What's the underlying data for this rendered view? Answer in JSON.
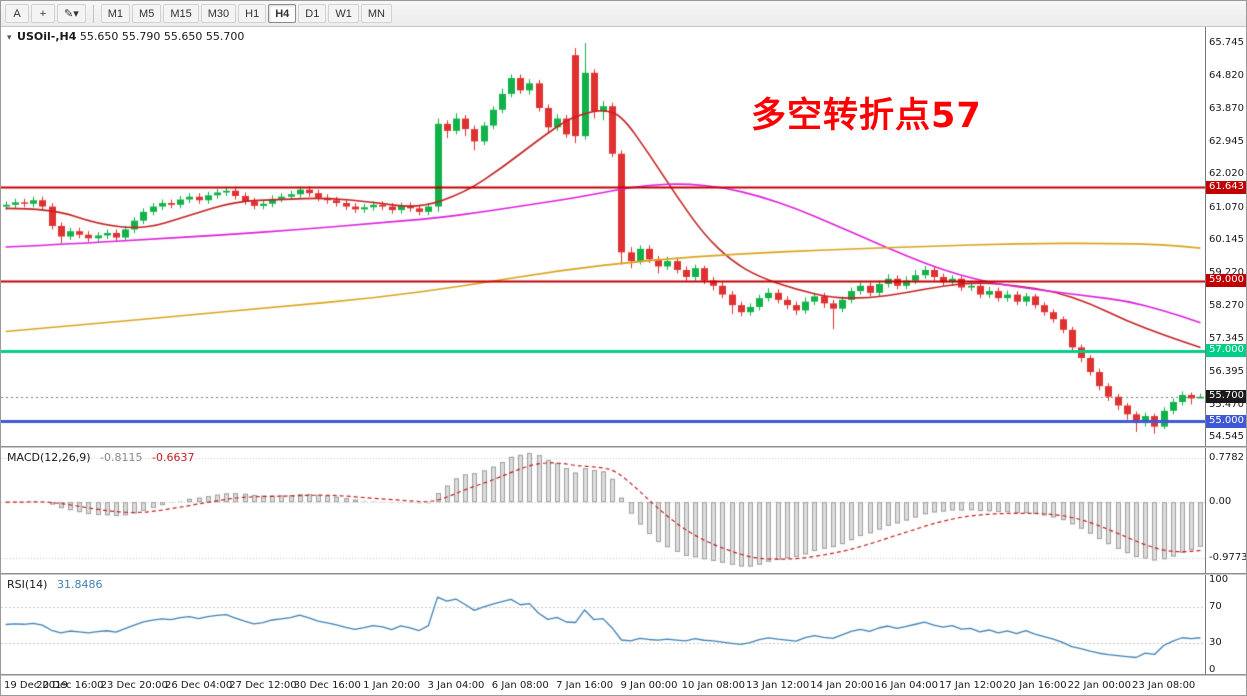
{
  "toolbar": {
    "tools": [
      {
        "name": "text-tool-button",
        "glyph": "A"
      },
      {
        "name": "crosshair-tool-button",
        "glyph": "+"
      },
      {
        "name": "objects-dropdown-button",
        "glyph": "✎▾"
      }
    ],
    "timeframes": [
      {
        "label": "M1",
        "active": false
      },
      {
        "label": "M5",
        "active": false
      },
      {
        "label": "M15",
        "active": false
      },
      {
        "label": "M30",
        "active": false
      },
      {
        "label": "H1",
        "active": false
      },
      {
        "label": "H4",
        "active": true
      },
      {
        "label": "D1",
        "active": false
      },
      {
        "label": "W1",
        "active": false
      },
      {
        "label": "MN",
        "active": false
      }
    ]
  },
  "main_chart": {
    "title_symbol": "USOil-,H4",
    "title_ohlc": "55.650 55.790 55.650 55.700",
    "annotation": {
      "text": "多空转折点57",
      "color": "#ff0000"
    }
  },
  "macd_panel": {
    "label": "MACD(12,26,9)",
    "main_value": "-0.8115",
    "signal_value": "-0.6637"
  },
  "rsi_panel": {
    "label": "RSI(14)",
    "value": "31.8486"
  },
  "chart_data": {
    "type": "candlestick",
    "symbol": "USOil-",
    "timeframe": "H4",
    "ohlc_display": {
      "open": "55.650",
      "high": "55.790",
      "low": "55.650",
      "close": "55.700"
    },
    "price_axis": {
      "min": 54.3,
      "max": 66.2,
      "ticks": [
        "65.745",
        "64.820",
        "63.870",
        "62.945",
        "62.020",
        "61.070",
        "60.145",
        "59.220",
        "58.270",
        "57.345",
        "56.395",
        "55.470",
        "54.545"
      ]
    },
    "hlines": [
      {
        "value": 61.643,
        "label": "61.643",
        "color": "#c00000",
        "width": 2
      },
      {
        "value": 59.0,
        "label": "59.000",
        "color": "#c00000",
        "width": 2
      },
      {
        "value": 57.0,
        "label": "57.000",
        "color": "#00cf87",
        "width": 3
      },
      {
        "value": 55.0,
        "label": "55.000",
        "color": "#3f58d6",
        "width": 3
      }
    ],
    "current_price": {
      "value": 55.7,
      "label": "55.700",
      "bg": "#1a1a1a"
    },
    "colors": {
      "up": "#12b24a",
      "down": "#e03131",
      "ma_fast": "#c32222",
      "ma_mid": "#dd22dd",
      "ma_slow": "#d9a41e",
      "macd_hist_fill": "#dcdcdc",
      "macd_hist_stroke": "#a0a0a0",
      "macd_signal": "#c32222",
      "rsi": "#3f81b5"
    },
    "candles": [
      [
        61.1,
        61.25,
        61.0,
        61.15
      ],
      [
        61.15,
        61.32,
        61.05,
        61.22
      ],
      [
        61.22,
        61.32,
        61.08,
        61.18
      ],
      [
        61.18,
        61.38,
        61.08,
        61.28
      ],
      [
        61.28,
        61.38,
        61.0,
        61.1
      ],
      [
        61.1,
        61.2,
        60.45,
        60.55
      ],
      [
        60.55,
        60.65,
        60.05,
        60.25
      ],
      [
        60.25,
        60.5,
        60.15,
        60.4
      ],
      [
        60.4,
        60.5,
        60.2,
        60.3
      ],
      [
        60.3,
        60.4,
        60.1,
        60.2
      ],
      [
        60.2,
        60.38,
        60.1,
        60.28
      ],
      [
        60.28,
        60.45,
        60.18,
        60.35
      ],
      [
        60.35,
        60.45,
        60.12,
        60.22
      ],
      [
        60.22,
        60.55,
        60.12,
        60.45
      ],
      [
        60.45,
        60.8,
        60.35,
        60.7
      ],
      [
        60.7,
        61.05,
        60.6,
        60.95
      ],
      [
        60.95,
        61.2,
        60.85,
        61.1
      ],
      [
        61.1,
        61.3,
        61.0,
        61.2
      ],
      [
        61.2,
        61.3,
        61.05,
        61.15
      ],
      [
        61.15,
        61.4,
        61.05,
        61.3
      ],
      [
        61.3,
        61.48,
        61.2,
        61.38
      ],
      [
        61.38,
        61.48,
        61.18,
        61.28
      ],
      [
        61.28,
        61.52,
        61.18,
        61.42
      ],
      [
        61.42,
        61.6,
        61.32,
        61.5
      ],
      [
        61.5,
        61.64,
        61.4,
        61.55
      ],
      [
        61.55,
        61.65,
        61.3,
        61.4
      ],
      [
        61.4,
        61.5,
        61.15,
        61.25
      ],
      [
        61.25,
        61.35,
        61.02,
        61.12
      ],
      [
        61.12,
        61.28,
        61.02,
        61.18
      ],
      [
        61.18,
        61.42,
        61.08,
        61.32
      ],
      [
        61.32,
        61.48,
        61.22,
        61.38
      ],
      [
        61.38,
        61.55,
        61.28,
        61.45
      ],
      [
        61.45,
        61.66,
        61.35,
        61.58
      ],
      [
        61.58,
        61.68,
        61.38,
        61.48
      ],
      [
        61.48,
        61.58,
        61.25,
        61.35
      ],
      [
        61.35,
        61.45,
        61.18,
        61.28
      ],
      [
        61.28,
        61.38,
        61.1,
        61.2
      ],
      [
        61.2,
        61.3,
        61.0,
        61.1
      ],
      [
        61.1,
        61.2,
        60.92,
        61.02
      ],
      [
        61.02,
        61.18,
        60.92,
        61.08
      ],
      [
        61.08,
        61.25,
        60.98,
        61.15
      ],
      [
        61.15,
        61.25,
        61.0,
        61.1
      ],
      [
        61.1,
        61.2,
        60.9,
        61.0
      ],
      [
        61.0,
        61.22,
        60.9,
        61.12
      ],
      [
        61.12,
        61.22,
        60.95,
        61.05
      ],
      [
        61.05,
        61.15,
        60.85,
        60.95
      ],
      [
        60.95,
        61.2,
        60.85,
        61.1
      ],
      [
        61.1,
        63.6,
        60.95,
        63.45
      ],
      [
        63.45,
        63.55,
        63.05,
        63.25
      ],
      [
        63.25,
        63.75,
        63.15,
        63.6
      ],
      [
        63.6,
        63.7,
        63.1,
        63.3
      ],
      [
        63.3,
        63.4,
        62.7,
        62.95
      ],
      [
        62.95,
        63.5,
        62.85,
        63.4
      ],
      [
        63.4,
        63.95,
        63.3,
        63.85
      ],
      [
        63.85,
        64.45,
        63.75,
        64.3
      ],
      [
        64.3,
        64.85,
        64.2,
        64.75
      ],
      [
        64.75,
        64.85,
        64.3,
        64.4
      ],
      [
        64.4,
        64.72,
        64.28,
        64.6
      ],
      [
        64.6,
        64.7,
        63.8,
        63.9
      ],
      [
        63.9,
        64.0,
        63.2,
        63.35
      ],
      [
        63.35,
        63.72,
        63.25,
        63.6
      ],
      [
        63.6,
        63.7,
        63.05,
        63.15
      ],
      [
        65.4,
        65.6,
        62.9,
        63.1
      ],
      [
        63.1,
        65.745,
        63.0,
        64.9
      ],
      [
        64.9,
        65.0,
        63.6,
        63.8
      ],
      [
        63.8,
        64.1,
        63.55,
        63.95
      ],
      [
        63.95,
        64.05,
        62.5,
        62.6
      ],
      [
        62.6,
        62.7,
        59.45,
        59.8
      ],
      [
        59.8,
        59.95,
        59.35,
        59.55
      ],
      [
        59.55,
        60.0,
        59.45,
        59.9
      ],
      [
        59.9,
        60.0,
        59.5,
        59.6
      ],
      [
        59.6,
        59.7,
        59.2,
        59.4
      ],
      [
        59.4,
        59.68,
        59.3,
        59.55
      ],
      [
        59.55,
        59.65,
        59.2,
        59.3
      ],
      [
        59.3,
        59.4,
        59.0,
        59.1
      ],
      [
        59.1,
        59.45,
        59.0,
        59.35
      ],
      [
        59.35,
        59.42,
        58.9,
        59.0
      ],
      [
        59.0,
        59.1,
        58.72,
        58.85
      ],
      [
        58.85,
        58.95,
        58.5,
        58.6
      ],
      [
        58.6,
        58.7,
        58.05,
        58.3
      ],
      [
        58.3,
        58.4,
        57.98,
        58.1
      ],
      [
        58.1,
        58.35,
        58.0,
        58.25
      ],
      [
        58.25,
        58.6,
        58.15,
        58.5
      ],
      [
        58.5,
        58.78,
        58.4,
        58.65
      ],
      [
        58.65,
        58.75,
        58.35,
        58.45
      ],
      [
        58.45,
        58.55,
        58.18,
        58.3
      ],
      [
        58.3,
        58.4,
        58.02,
        58.15
      ],
      [
        58.15,
        58.52,
        58.05,
        58.4
      ],
      [
        58.4,
        58.65,
        58.3,
        58.55
      ],
      [
        58.55,
        58.65,
        58.22,
        58.35
      ],
      [
        58.35,
        58.45,
        57.62,
        58.2
      ],
      [
        58.2,
        58.55,
        58.1,
        58.45
      ],
      [
        58.45,
        58.8,
        58.35,
        58.7
      ],
      [
        58.7,
        58.95,
        58.6,
        58.85
      ],
      [
        58.85,
        58.95,
        58.55,
        58.65
      ],
      [
        58.65,
        59.0,
        58.55,
        58.9
      ],
      [
        58.9,
        59.18,
        58.8,
        59.05
      ],
      [
        59.05,
        59.15,
        58.75,
        58.85
      ],
      [
        58.85,
        59.12,
        58.75,
        59.0
      ],
      [
        59.0,
        59.3,
        58.9,
        59.15
      ],
      [
        59.15,
        59.42,
        59.05,
        59.3
      ],
      [
        59.3,
        59.4,
        59.0,
        59.1
      ],
      [
        59.1,
        59.2,
        58.85,
        58.95
      ],
      [
        58.95,
        59.15,
        58.85,
        59.05
      ],
      [
        59.05,
        59.12,
        58.7,
        58.8
      ],
      [
        58.8,
        58.98,
        58.7,
        58.85
      ],
      [
        58.85,
        58.95,
        58.5,
        58.6
      ],
      [
        58.6,
        58.82,
        58.5,
        58.7
      ],
      [
        58.7,
        58.8,
        58.4,
        58.5
      ],
      [
        58.5,
        58.72,
        58.4,
        58.6
      ],
      [
        58.6,
        58.7,
        58.3,
        58.4
      ],
      [
        58.4,
        58.65,
        58.28,
        58.55
      ],
      [
        58.55,
        58.62,
        58.2,
        58.3
      ],
      [
        58.3,
        58.38,
        58.0,
        58.1
      ],
      [
        58.1,
        58.18,
        57.8,
        57.9
      ],
      [
        57.9,
        57.98,
        57.5,
        57.6
      ],
      [
        57.6,
        57.68,
        56.98,
        57.1
      ],
      [
        57.1,
        57.18,
        56.68,
        56.8
      ],
      [
        56.8,
        56.88,
        56.3,
        56.4
      ],
      [
        56.4,
        56.5,
        55.88,
        56.0
      ],
      [
        56.0,
        56.08,
        55.58,
        55.7
      ],
      [
        55.7,
        55.78,
        55.32,
        55.45
      ],
      [
        55.45,
        55.52,
        55.05,
        55.2
      ],
      [
        55.2,
        55.28,
        54.7,
        54.95
      ],
      [
        54.95,
        55.25,
        54.85,
        55.15
      ],
      [
        55.15,
        55.22,
        54.65,
        54.85
      ],
      [
        54.85,
        55.4,
        54.78,
        55.3
      ],
      [
        55.3,
        55.65,
        55.2,
        55.55
      ],
      [
        55.55,
        55.85,
        55.45,
        55.75
      ],
      [
        55.75,
        55.82,
        55.48,
        55.65
      ],
      [
        55.65,
        55.79,
        55.65,
        55.7
      ]
    ],
    "ma_lines": [
      {
        "name": "ma-fast-red",
        "color_key": "ma_fast",
        "i": [
          0,
          5,
          10,
          15,
          20,
          25,
          30,
          35,
          40,
          45,
          50,
          54,
          58,
          61,
          63,
          65,
          67,
          70,
          73,
          76,
          79,
          82,
          86,
          90,
          94,
          98,
          102,
          106,
          110,
          114,
          118,
          122,
          126,
          130
        ],
        "v": [
          61.05,
          61.05,
          60.6,
          60.45,
          60.85,
          61.25,
          61.3,
          61.35,
          61.22,
          61.05,
          61.5,
          62.2,
          63.0,
          63.55,
          63.75,
          63.85,
          63.7,
          62.6,
          61.4,
          60.3,
          59.55,
          59.1,
          58.75,
          58.5,
          58.5,
          58.65,
          58.85,
          58.95,
          58.85,
          58.7,
          58.35,
          57.85,
          57.45,
          57.1
        ]
      },
      {
        "name": "ma-mid-magenta",
        "color_key": "ma_mid",
        "i": [
          0,
          8,
          16,
          24,
          32,
          40,
          47,
          52,
          57,
          62,
          66,
          70,
          74,
          78,
          82,
          86,
          90,
          94,
          98,
          102,
          106,
          110,
          114,
          118,
          122,
          126,
          130
        ],
        "v": [
          59.95,
          60.05,
          60.18,
          60.3,
          60.45,
          60.62,
          60.78,
          60.95,
          61.15,
          61.35,
          61.55,
          61.72,
          61.75,
          61.65,
          61.4,
          61.05,
          60.6,
          60.15,
          59.7,
          59.3,
          59.0,
          58.82,
          58.68,
          58.55,
          58.42,
          58.15,
          57.8
        ]
      },
      {
        "name": "ma-slow-orange",
        "color_key": "ma_slow",
        "i": [
          0,
          10,
          20,
          30,
          40,
          50,
          60,
          70,
          80,
          90,
          100,
          110,
          120,
          126,
          130
        ],
        "v": [
          57.55,
          57.78,
          58.02,
          58.26,
          58.5,
          58.85,
          59.28,
          59.58,
          59.76,
          59.88,
          59.97,
          60.05,
          60.06,
          60.02,
          59.92
        ]
      }
    ],
    "macd": {
      "params": [
        12,
        26,
        9
      ],
      "levels": [
        "0.7782",
        "0.00",
        "-0.9773"
      ]
    },
    "rsi": {
      "period": 14,
      "levels": [
        "100",
        "70",
        "30",
        "0"
      ]
    },
    "time_labels": [
      "19 Dec 2019",
      "20 Dec 16:00",
      "23 Dec 20:00",
      "26 Dec 04:00",
      "27 Dec 12:00",
      "30 Dec 16:00",
      "1 Jan 20:00",
      "3 Jan 04:00",
      "6 Jan 08:00",
      "7 Jan 16:00",
      "9 Jan 00:00",
      "10 Jan 08:00",
      "13 Jan 12:00",
      "14 Jan 20:00",
      "16 Jan 04:00",
      "17 Jan 12:00",
      "20 Jan 16:00",
      "22 Jan 00:00",
      "23 Jan 08:00"
    ],
    "label_every": 7
  }
}
